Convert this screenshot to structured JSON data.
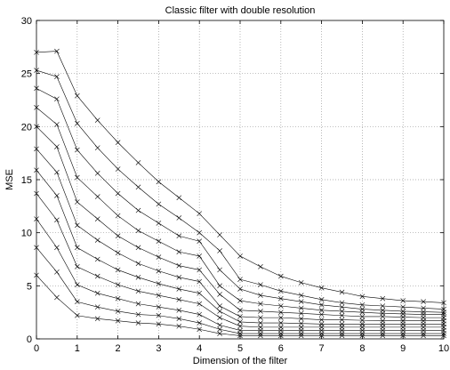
{
  "chart_data": {
    "type": "line",
    "title": "Classic filter with double resolution",
    "xlabel": "Dimension of the filter",
    "ylabel": "MSE",
    "xlim": [
      0,
      10
    ],
    "ylim": [
      0,
      30
    ],
    "xticks": [
      "0",
      "1",
      "2",
      "3",
      "4",
      "5",
      "6",
      "7",
      "8",
      "9",
      "10"
    ],
    "yticks": [
      "0",
      "5",
      "10",
      "15",
      "20",
      "25",
      "30"
    ],
    "grid": true,
    "marker": "x",
    "line_color": "#000000",
    "x": [
      0,
      0.5,
      1,
      1.5,
      2,
      2.5,
      3,
      3.5,
      4,
      4.5,
      5,
      5.5,
      6,
      6.5,
      7,
      7.5,
      8,
      8.5,
      9,
      9.5,
      10
    ],
    "series": [
      {
        "values": [
          27.0,
          27.1,
          22.9,
          20.6,
          18.5,
          16.6,
          14.8,
          13.3,
          11.8,
          9.8,
          7.8,
          6.8,
          5.9,
          5.3,
          4.8,
          4.4,
          4.0,
          3.8,
          3.6,
          3.5,
          3.4
        ]
      },
      {
        "values": [
          25.3,
          24.7,
          20.3,
          18.0,
          16.0,
          14.3,
          12.7,
          11.4,
          10.0,
          8.3,
          5.6,
          5.1,
          4.5,
          4.1,
          3.7,
          3.4,
          3.2,
          3.1,
          3.0,
          2.9,
          2.8
        ]
      },
      {
        "values": [
          23.6,
          22.6,
          17.8,
          15.6,
          13.7,
          12.1,
          10.9,
          9.7,
          9.2,
          6.5,
          4.7,
          4.1,
          3.8,
          3.5,
          3.2,
          3.0,
          2.8,
          2.7,
          2.6,
          2.55,
          2.5
        ]
      },
      {
        "values": [
          21.8,
          20.2,
          15.2,
          13.4,
          11.6,
          10.2,
          9.2,
          8.2,
          7.8,
          5.0,
          3.6,
          3.3,
          3.1,
          2.9,
          2.7,
          2.6,
          2.5,
          2.4,
          2.35,
          2.3,
          2.3
        ]
      },
      {
        "values": [
          20.0,
          18.1,
          12.9,
          11.3,
          9.7,
          8.6,
          7.7,
          6.9,
          6.5,
          4.2,
          2.7,
          2.6,
          2.5,
          2.4,
          2.3,
          2.2,
          2.1,
          2.1,
          2.05,
          2.0,
          2.0
        ]
      },
      {
        "values": [
          17.9,
          15.7,
          10.7,
          9.3,
          8.1,
          7.1,
          6.4,
          5.8,
          5.4,
          3.1,
          2.1,
          2.0,
          2.0,
          1.9,
          1.8,
          1.8,
          1.75,
          1.7,
          1.7,
          1.7,
          1.7
        ]
      },
      {
        "values": [
          15.9,
          13.5,
          8.6,
          7.5,
          6.5,
          5.8,
          5.2,
          4.7,
          4.3,
          2.6,
          1.6,
          1.5,
          1.5,
          1.45,
          1.4,
          1.4,
          1.4,
          1.4,
          1.4,
          1.4,
          1.4
        ]
      },
      {
        "values": [
          13.7,
          11.2,
          6.8,
          5.9,
          5.1,
          4.5,
          4.1,
          3.7,
          3.3,
          2.0,
          1.2,
          1.1,
          1.1,
          1.1,
          1.1,
          1.1,
          1.1,
          1.1,
          1.1,
          1.1,
          1.1
        ]
      },
      {
        "values": [
          11.3,
          8.6,
          5.1,
          4.3,
          3.8,
          3.3,
          3.0,
          2.7,
          2.3,
          1.3,
          0.8,
          0.8,
          0.8,
          0.8,
          0.8,
          0.8,
          0.8,
          0.8,
          0.8,
          0.8,
          0.8
        ]
      },
      {
        "values": [
          8.6,
          6.3,
          3.5,
          3.0,
          2.6,
          2.3,
          2.2,
          1.9,
          1.5,
          0.9,
          0.5,
          0.5,
          0.5,
          0.5,
          0.5,
          0.5,
          0.5,
          0.5,
          0.5,
          0.5,
          0.5
        ]
      },
      {
        "values": [
          6.0,
          3.9,
          2.2,
          1.9,
          1.7,
          1.5,
          1.4,
          1.2,
          0.9,
          0.5,
          0.3,
          0.3,
          0.3,
          0.3,
          0.3,
          0.3,
          0.3,
          0.3,
          0.3,
          0.3,
          0.3
        ]
      }
    ]
  }
}
